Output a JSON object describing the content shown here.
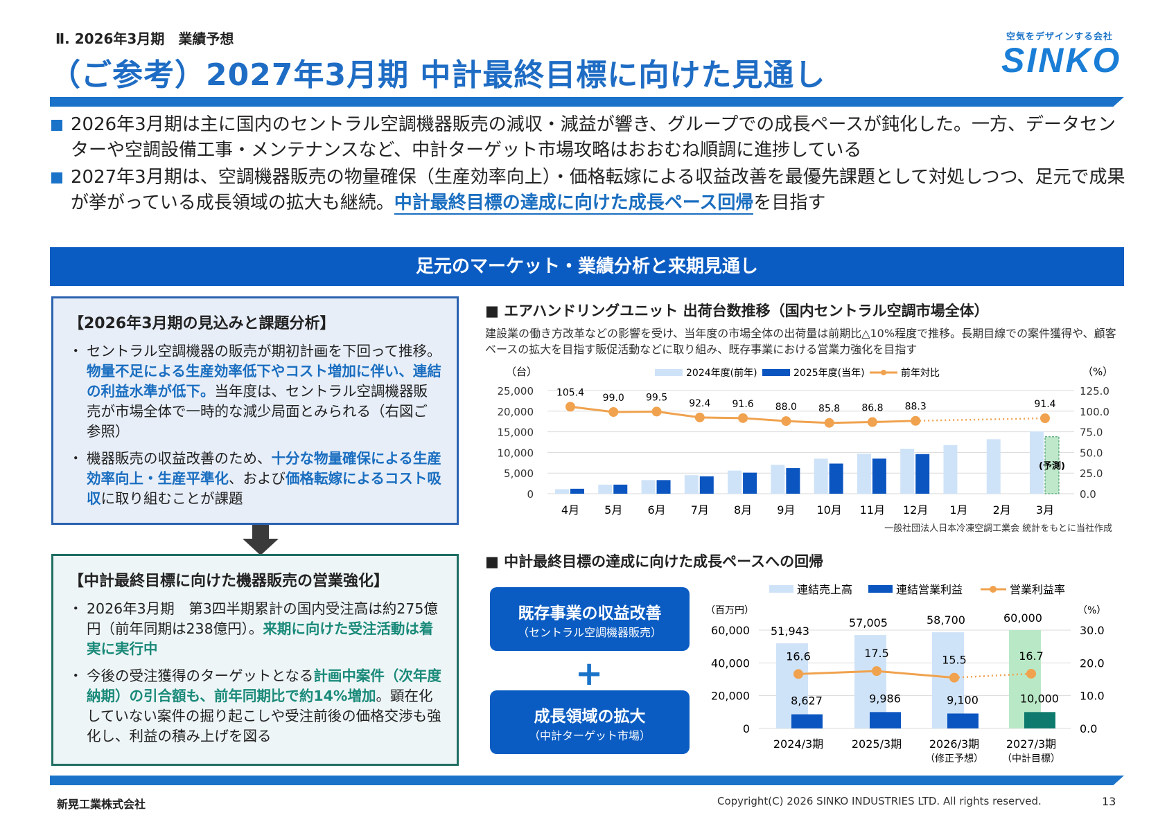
{
  "header": {
    "section": "Ⅱ. 2026年3月期　業績予想",
    "title": "（ご参考）2027年3月期 中計最終目標に向けた見通し",
    "logo_tagline": "空気をデザインする会社",
    "logo_text": "SINKO"
  },
  "bullets": [
    [
      {
        "t": "2026年3月期は主に国内のセントラル空調機器販売の減収・減益が響き、グループでの成長ペースが鈍化した。一方、データセンターや空調設備工事・メンテナンスなど、中計ターゲット市場攻略はおおむね順調に進捗している",
        "h": ""
      }
    ],
    [
      {
        "t": "2027年3月期は、空調機器販売の物量確保（生産効率向上）・価格転嫁による収益改善を最優先課題として対処しつつ、足元で成果が挙がっている成長領域の拡大も継続。",
        "h": ""
      },
      {
        "t": "中計最終目標の達成に向けた成長ペース回帰",
        "h": "u"
      },
      {
        "t": "を目指す",
        "h": ""
      }
    ]
  ],
  "band": "足元のマーケット・業績分析と来期見通し",
  "box1": {
    "heading": "【2026年3月期の見込みと課題分析】",
    "items": [
      [
        {
          "t": "セントラル空調機器の販売が期初計画を下回って推移。",
          "h": ""
        },
        {
          "t": "物量不足による生産効率低下やコスト増加に伴い、連結の利益水準が低下。",
          "h": "b"
        },
        {
          "t": "当年度は、セントラル空調機器販売が市場全体で一時的な減少局面とみられる（右図ご参照）",
          "h": ""
        }
      ],
      [
        {
          "t": "機器販売の収益改善のため、",
          "h": ""
        },
        {
          "t": "十分な物量確保による生産効率向上・生産平準化",
          "h": "b"
        },
        {
          "t": "、および",
          "h": ""
        },
        {
          "t": "価格転嫁によるコスト吸収",
          "h": "b"
        },
        {
          "t": "に取り組むことが課題",
          "h": ""
        }
      ]
    ]
  },
  "box2": {
    "heading": "【中計最終目標に向けた機器販売の営業強化】",
    "items": [
      [
        {
          "t": "2026年3月期　第3四半期累計の国内受注高は約275億円（前年同期は238億円）。",
          "h": ""
        },
        {
          "t": "来期に向けた受注活動は着実に実行中",
          "h": "t"
        }
      ],
      [
        {
          "t": "今後の受注獲得のターゲットとなる",
          "h": ""
        },
        {
          "t": "計画中案件（次年度納期）の引合額も、前年同期比で約14%増加",
          "h": "t"
        },
        {
          "t": "。顕在化していない案件の掘り起こしや受注前後の価格交渉も強化し、利益の積み上げを図る",
          "h": ""
        }
      ]
    ]
  },
  "chart1": {
    "title": "■ エアハンドリングユニット 出荷台数推移（国内セントラル空調市場全体）",
    "subtitle": "建設業の働き方改革などの影響を受け、当年度の市場全体の出荷量は前期比△10%程度で推移。長期目線での案件獲得や、顧客ベースの拡大を目指す販促活動などに取り組み、既存事業における営業力強化を目指す",
    "source": "一般社団法人日本冷凍空調工業会 統計をもとに当社作成"
  },
  "chart2_section": {
    "title": "■ 中計最終目標の達成に向けた成長ペースへの回帰",
    "pill1_main": "既存事業の収益改善",
    "pill1_sub": "（セントラル空調機器販売）",
    "plus": "+",
    "pill2_main": "成長領域の拡大",
    "pill2_sub": "（中計ターゲット市場）"
  },
  "footer": {
    "company": "新晃工業株式会社",
    "copyright": "Copyright(C) 2026 SINKO INDUSTRIES LTD. All rights reserved.",
    "page": "13"
  },
  "chart_data": [
    {
      "type": "bar+line",
      "left_unit": "（台）",
      "right_unit": "（%）",
      "categories": [
        "4月",
        "5月",
        "6月",
        "7月",
        "8月",
        "9月",
        "10月",
        "11月",
        "12月",
        "1月",
        "2月",
        "3月"
      ],
      "series": [
        {
          "name": "2024年度(前年)",
          "type": "bar",
          "color": "#cfe3f8",
          "values": [
            1100,
            2200,
            3300,
            4500,
            5600,
            7000,
            8500,
            9700,
            10900,
            11800,
            13200,
            15100
          ]
        },
        {
          "name": "2025年度(当年)",
          "type": "bar",
          "color": "#0b55c0",
          "values": [
            1200,
            2200,
            3300,
            4200,
            5100,
            6200,
            7300,
            8500,
            9600,
            null,
            null,
            13800
          ],
          "forecast_index": 11,
          "forecast_label": "(予測)",
          "forecast_color": "#bfe8cb"
        },
        {
          "name": "前年対比",
          "type": "line",
          "axis": "right",
          "color": "#f0a24e",
          "values": [
            105.4,
            99.0,
            99.5,
            92.4,
            91.6,
            88.0,
            85.8,
            86.8,
            88.3,
            null,
            null,
            91.4
          ]
        }
      ],
      "y_left": {
        "min": 0,
        "max": 25000,
        "ticks": [
          "0",
          "5,000",
          "10,000",
          "15,000",
          "20,000",
          "25,000"
        ]
      },
      "y_right": {
        "min": 0,
        "max": 125,
        "ticks": [
          "0.0",
          "25.0",
          "50.0",
          "75.0",
          "100.0",
          "125.0"
        ]
      },
      "grid": true,
      "legend": "top"
    },
    {
      "type": "bar+line",
      "left_unit": "（百万円）",
      "right_unit": "（%）",
      "categories": [
        [
          "2024/3期",
          ""
        ],
        [
          "2025/3期",
          ""
        ],
        [
          "2026/3期",
          "（修正予想）"
        ],
        [
          "2027/3期",
          "（中計目標）"
        ]
      ],
      "series": [
        {
          "name": "連結売上高",
          "type": "bar",
          "color": "#cfe3f8",
          "highlight_color": "#b9e8c6",
          "values": [
            51943,
            57005,
            58700,
            60000
          ],
          "labels": [
            "51,943",
            "57,005",
            "58,700",
            "60,000"
          ]
        },
        {
          "name": "連結営業利益",
          "type": "bar",
          "color": "#0b55c0",
          "highlight_color": "#0e7a6e",
          "values": [
            8627,
            9986,
            9100,
            10000
          ],
          "labels": [
            "8,627",
            "9,986",
            "9,100",
            "10,000"
          ]
        },
        {
          "name": "営業利益率",
          "type": "line",
          "axis": "right",
          "color": "#f0a24e",
          "values": [
            16.6,
            17.5,
            15.5,
            16.7
          ],
          "labels": [
            "16.6",
            "17.5",
            "15.5",
            "16.7"
          ]
        }
      ],
      "y_left": {
        "min": 0,
        "max": 60000,
        "ticks": [
          "0",
          "20,000",
          "40,000",
          "60,000"
        ]
      },
      "y_right": {
        "min": 0,
        "max": 30,
        "ticks": [
          "0.0",
          "10.0",
          "20.0",
          "30.0"
        ]
      },
      "grid": true,
      "legend": "top"
    }
  ]
}
